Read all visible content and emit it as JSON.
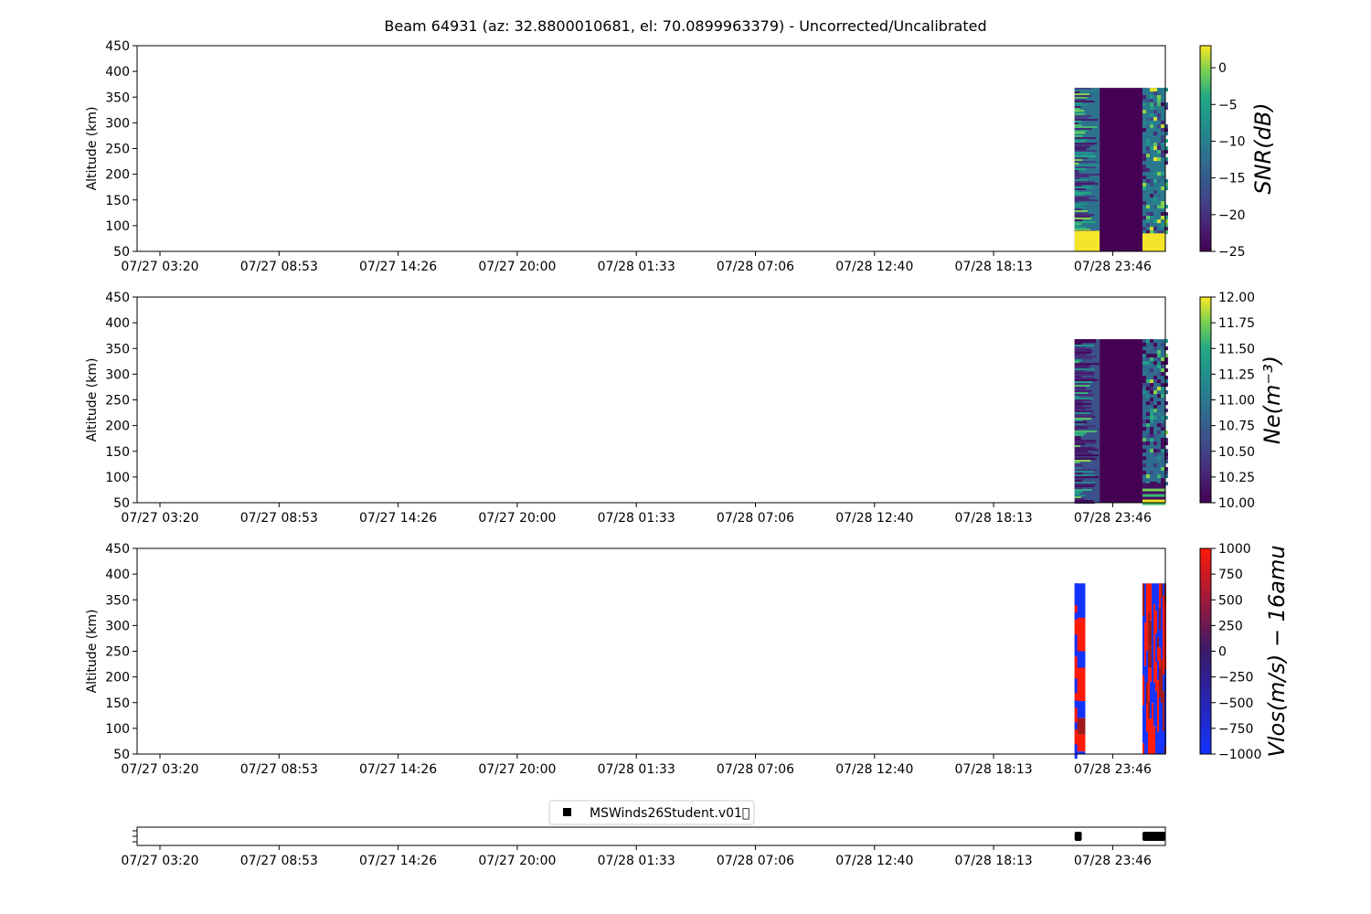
{
  "figure": {
    "title": "Beam 64931 (az: 32.8800010681, el: 70.0899963379) - Uncorrected/Uncalibrated"
  },
  "chart_data": [
    {
      "type": "heatmap",
      "panel": "snr",
      "title": "",
      "xlabel": "",
      "ylabel": "Altitude (km)",
      "ylim": [
        50,
        450
      ],
      "yticks": [
        "50",
        "100",
        "150",
        "200",
        "250",
        "300",
        "350",
        "400",
        "450"
      ],
      "xticks": [
        "07/27 03:20",
        "07/27 08:53",
        "07/27 14:26",
        "07/27 20:00",
        "07/28 01:33",
        "07/28 07:06",
        "07/28 12:40",
        "07/28 18:13",
        "07/28 23:46"
      ],
      "colorbar": {
        "label": "SNR(dB)",
        "colormap": "viridis",
        "range": [
          -25,
          3
        ],
        "ticks": [
          "0",
          "−5",
          "−10",
          "−15",
          "−20",
          "−25"
        ]
      },
      "data_blocks": [
        {
          "start": "07/28 22:00",
          "end": "07/28 23:10",
          "alt_range": [
            50,
            368
          ],
          "pattern": "horizontal bands, mostly green; bright yellow below 90 km"
        },
        {
          "start": "07/28 23:10",
          "end": "07/29 01:10",
          "alt_range": [
            50,
            368
          ],
          "pattern": "uniform low value (~-25 dB)"
        },
        {
          "start": "07/29 01:10",
          "end": "07/29 02:30",
          "alt_range": [
            50,
            368
          ],
          "pattern": "speckled noise; yellow below 85 km"
        }
      ]
    },
    {
      "type": "heatmap",
      "panel": "ne",
      "title": "",
      "xlabel": "",
      "ylabel": "Altitude (km)",
      "ylim": [
        50,
        450
      ],
      "yticks": [
        "50",
        "100",
        "150",
        "200",
        "250",
        "300",
        "350",
        "400",
        "450"
      ],
      "xticks": [
        "07/27 03:20",
        "07/27 08:53",
        "07/27 14:26",
        "07/27 20:00",
        "07/28 01:33",
        "07/28 07:06",
        "07/28 12:40",
        "07/28 18:13",
        "07/28 23:46"
      ],
      "colorbar": {
        "label": "Ne(m⁻³)",
        "colormap": "viridis",
        "range": [
          10,
          12
        ],
        "ticks": [
          "12.00",
          "11.75",
          "11.50",
          "11.25",
          "11.00",
          "10.75",
          "10.50",
          "10.25",
          "10.00"
        ]
      },
      "data_blocks": [
        {
          "start": "07/28 22:00",
          "end": "07/28 23:10",
          "alt_range": [
            50,
            368
          ],
          "pattern": "horizontal bands, mixed dark and green"
        },
        {
          "start": "07/28 23:10",
          "end": "07/29 01:10",
          "alt_range": [
            50,
            368
          ],
          "pattern": "uniform minimum value (10.00)"
        },
        {
          "start": "07/29 01:10",
          "end": "07/29 02:30",
          "alt_range": [
            50,
            368
          ],
          "pattern": "speckled noise; banded near bottom"
        }
      ]
    },
    {
      "type": "heatmap",
      "panel": "vlos",
      "title": "",
      "xlabel": "",
      "ylabel": "Altitude (km)",
      "ylim": [
        50,
        450
      ],
      "yticks": [
        "50",
        "100",
        "150",
        "200",
        "250",
        "300",
        "350",
        "400",
        "450"
      ],
      "xticks": [
        "07/27 03:20",
        "07/27 08:53",
        "07/27 14:26",
        "07/27 20:00",
        "07/28 01:33",
        "07/28 07:06",
        "07/28 12:40",
        "07/28 18:13",
        "07/28 23:46"
      ],
      "colorbar": {
        "label": "Vlos(m/s) − 16amu",
        "colormap": "blue-red",
        "range": [
          -1000,
          1000
        ],
        "ticks": [
          "1000",
          "750",
          "500",
          "250",
          "0",
          "−250",
          "−500",
          "−750",
          "−1000"
        ]
      },
      "data_blocks": [
        {
          "start": "07/28 22:00",
          "end": "07/28 22:30",
          "alt_range": [
            50,
            382
          ],
          "pattern": "red/blue altitude blocks"
        },
        {
          "start": "07/29 01:10",
          "end": "07/29 02:30",
          "alt_range": [
            50,
            382
          ],
          "pattern": "narrow vertical red/blue stripes"
        }
      ]
    },
    {
      "type": "scatter",
      "panel": "experiment-timeline",
      "xticks": [
        "07/27 03:20",
        "07/27 08:53",
        "07/27 14:26",
        "07/27 20:00",
        "07/28 01:33",
        "07/28 07:06",
        "07/28 12:40",
        "07/28 18:13",
        "07/28 23:46"
      ],
      "legend": {
        "location": "upper-center",
        "entries": [
          "MSWinds26Student.v01\u0000"
        ]
      },
      "segments": [
        {
          "name": "MSWinds26Student.v01\u0000",
          "start": "07/28 22:00",
          "end": "07/28 22:20"
        },
        {
          "name": "MSWinds26Student.v01\u0000",
          "start": "07/29 01:10",
          "end": "07/29 02:30"
        }
      ]
    }
  ],
  "colors": {
    "viridis_low": "#440154",
    "viridis_mid": "#21918c",
    "viridis_high": "#fde725",
    "vlos_neg": "#1432ff",
    "vlos_pos": "#ff1a0a",
    "vlos_dark": "#9e1a1a"
  }
}
